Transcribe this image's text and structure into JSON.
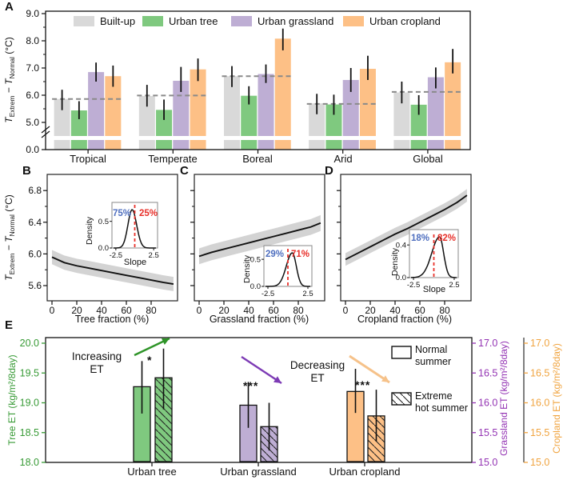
{
  "panels": {
    "a_letter": "A",
    "b_letter": "B",
    "c_letter": "C",
    "d_letter": "D",
    "e_letter": "E"
  },
  "t_axis_parts": {
    "sym1": "T",
    "sub1": "Extrem",
    "mid": " − ",
    "sym2": "T",
    "sub2": "Normal",
    "unit": " (°C)"
  },
  "colors": {
    "built_up": "#d9d9d9",
    "urban_tree": "#7fc97f",
    "urban_grassland": "#beaed4",
    "urban_cropland": "#fdc086",
    "band": "#d3d3d3",
    "dashed_baseline": "#8a8a8a",
    "red_dashed": "#e8302a",
    "pct_blue": "#4f6fbf",
    "pct_red": "#e8302a",
    "tree_axis": "#379a35",
    "grassland_axis": "#9333b3",
    "cropland_axis": "#f0a440",
    "arrow_green": "#2e9428",
    "arrow_purple": "#7d3bb5",
    "arrow_orange": "#f6c28a"
  },
  "chart_data": {
    "panelA": {
      "type": "bar",
      "ylabel": "T_Extrem − T_Normal (°C)",
      "categories": [
        "Tropical",
        "Temperate",
        "Boreal",
        "Arid",
        "Global"
      ],
      "series": [
        {
          "name": "Built-up",
          "color": "#d9d9d9",
          "values": [
            5.86,
            5.97,
            6.7,
            5.7,
            6.1
          ],
          "err_lo": [
            5.45,
            5.58,
            6.3,
            5.3,
            5.7
          ],
          "err_hi": [
            6.2,
            6.38,
            7.07,
            6.05,
            6.5
          ]
        },
        {
          "name": "Urban tree",
          "color": "#7fc97f",
          "values": [
            5.44,
            5.46,
            5.98,
            5.66,
            5.65
          ],
          "err_lo": [
            5.12,
            5.09,
            5.66,
            5.28,
            5.28
          ],
          "err_hi": [
            5.78,
            5.84,
            6.33,
            6.02,
            6.0
          ]
        },
        {
          "name": "Urban grassland",
          "color": "#beaed4",
          "values": [
            6.85,
            6.53,
            6.78,
            6.56,
            6.66
          ],
          "err_lo": [
            6.5,
            6.12,
            6.45,
            6.12,
            6.25
          ],
          "err_hi": [
            7.2,
            7.04,
            7.13,
            7.0,
            7.02
          ]
        },
        {
          "name": "Urban cropland",
          "color": "#fdc086",
          "values": [
            6.7,
            6.95,
            8.08,
            6.97,
            7.21
          ],
          "err_lo": [
            6.31,
            6.52,
            7.65,
            6.56,
            6.8
          ],
          "err_hi": [
            7.09,
            7.35,
            8.45,
            7.45,
            7.7
          ]
        }
      ],
      "dashed_baseline": [
        5.86,
        5.99,
        6.7,
        5.68,
        6.12
      ],
      "ytick_values": [
        9,
        8,
        7,
        6,
        5
      ],
      "yminor": [
        8.5,
        7.5,
        6.5,
        5.5
      ],
      "zero_label": "0.0",
      "axis_break": true
    },
    "panelB": {
      "type": "line",
      "xlabel": "Tree fraction (%)",
      "x": [
        0,
        10,
        20,
        30,
        40,
        50,
        60,
        70,
        80,
        90,
        98
      ],
      "y": [
        5.96,
        5.89,
        5.85,
        5.82,
        5.79,
        5.76,
        5.73,
        5.7,
        5.67,
        5.64,
        5.62
      ],
      "band": 0.09,
      "xticks": [
        0,
        20,
        40,
        60,
        80
      ],
      "yticks": [
        5.6,
        6.0,
        6.4,
        6.8
      ],
      "yminor": [
        5.8,
        6.2,
        6.6
      ],
      "show_ytick_labels": true,
      "inset": {
        "pct_left": {
          "text": "75%"
        },
        "pct_right": {
          "text": "25%"
        },
        "peak": -0.35,
        "sigma_l": 0.55,
        "sigma_r": 0.6,
        "ymax": 0.72,
        "ytick": {
          "label": "0.5",
          "value": 0.5
        },
        "zero_label": "0.0",
        "xticks": [
          "-2.5",
          "2.5"
        ],
        "ylabel": "Density",
        "xlabel": "Slope"
      }
    },
    "panelC": {
      "type": "line",
      "xlabel": "Grassland fraction (%)",
      "x": [
        0,
        10,
        20,
        30,
        40,
        50,
        60,
        70,
        80,
        90,
        98
      ],
      "y": [
        5.97,
        6.02,
        6.06,
        6.1,
        6.14,
        6.18,
        6.22,
        6.26,
        6.3,
        6.34,
        6.39
      ],
      "band": 0.1,
      "xticks": [
        0,
        20,
        40,
        60,
        80
      ],
      "yticks": [
        5.6,
        6.0,
        6.4,
        6.8
      ],
      "yminor": [
        5.8,
        6.2,
        6.6
      ],
      "show_ytick_labels": false,
      "inset": {
        "pct_left": {
          "text": "29%"
        },
        "pct_right": {
          "text": "71%"
        },
        "peak": 0.55,
        "sigma_l": 0.75,
        "sigma_r": 0.5,
        "ymax": 0.62,
        "ytick": {
          "label": "0.5",
          "value": 0.5
        },
        "zero_label": "0.0",
        "xticks": [
          "-2.5",
          "2.5"
        ],
        "ylabel": "Density",
        "xlabel": ""
      }
    },
    "panelD": {
      "type": "line",
      "xlabel": "Cropland fraction (%)",
      "x": [
        0,
        10,
        20,
        30,
        40,
        50,
        60,
        70,
        80,
        90,
        98
      ],
      "y": [
        5.93,
        6.01,
        6.09,
        6.17,
        6.25,
        6.32,
        6.4,
        6.48,
        6.56,
        6.65,
        6.74
      ],
      "band": 0.08,
      "xticks": [
        0,
        20,
        40,
        60,
        80
      ],
      "yticks": [
        5.6,
        6.0,
        6.4,
        6.8
      ],
      "yminor": [
        5.8,
        6.2,
        6.6
      ],
      "show_ytick_labels": false,
      "inset": {
        "pct_left": {
          "text": "18%"
        },
        "pct_right": {
          "text": "82%"
        },
        "peak": 0.7,
        "sigma_l": 0.95,
        "sigma_r": 0.5,
        "ymax": 0.5,
        "ytick": {
          "label": "0.4",
          "value": 0.4
        },
        "zero_label": "0.0",
        "xticks": [
          "-2.5",
          "2.5"
        ],
        "ylabel": "Density",
        "xlabel": "Slope"
      }
    },
    "panelE": {
      "type": "grouped-bar",
      "groups": [
        {
          "label": "Urban tree",
          "color": "#7fc97f",
          "axis": "tree",
          "sig": "*",
          "normal": {
            "value": 19.27,
            "lo": 18.82,
            "hi": 19.7
          },
          "extreme": {
            "value": 19.42,
            "lo": 18.89,
            "hi": 19.91
          }
        },
        {
          "label": "Urban grassland",
          "color": "#beaed4",
          "axis": "grassland",
          "sig": "***",
          "normal": {
            "value": 15.96,
            "lo": 15.58,
            "hi": 16.35
          },
          "extreme": {
            "value": 15.6,
            "lo": 15.2,
            "hi": 16.0
          }
        },
        {
          "label": "Urban cropland",
          "color": "#fdc086",
          "axis": "cropland",
          "sig": "***",
          "normal": {
            "value": 16.19,
            "lo": 15.83,
            "hi": 16.57
          },
          "extreme": {
            "value": 15.78,
            "lo": 15.35,
            "hi": 16.22
          }
        }
      ],
      "axes": {
        "tree": {
          "title": "Tree ET (kg/m²/8day)",
          "color": "#379a35",
          "ticks": [
            20.0,
            19.5,
            19.0,
            18.5,
            18.0
          ],
          "min": 18
        },
        "grassland": {
          "title": "Grassland ET (kg/m²/8day)",
          "color": "#9333b3",
          "ticks": [
            17.0,
            16.5,
            16.0,
            15.5,
            15.0
          ],
          "min": 15
        },
        "cropland": {
          "title": "Cropland ET (kg/m²/8day)",
          "color": "#f0a440",
          "ticks": [
            17.0,
            16.5,
            16.0,
            15.5,
            15.0
          ],
          "min": 15
        }
      },
      "annotations": {
        "increasing": "Increasing\nET",
        "decreasing": "Decreasing\nET"
      },
      "legend": [
        {
          "label": "Normal\nsummer",
          "hatch": false
        },
        {
          "label": "Extreme\nhot summer",
          "hatch": true
        }
      ]
    }
  }
}
